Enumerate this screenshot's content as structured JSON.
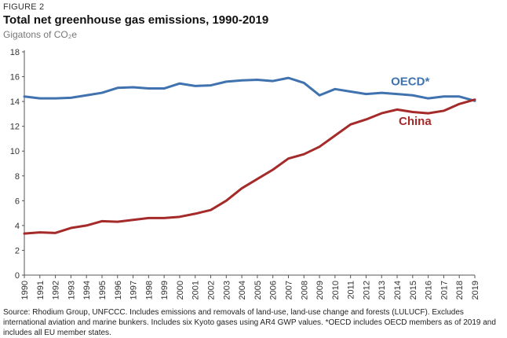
{
  "figure_label": "FIGURE 2",
  "source_note": "Source: Rhodium Group, UNFCCC. Includes emissions and removals of land-use, land-use change and forests (LULUCF). Excludes international aviation and marine bunkers. Includes six Kyoto gases using AR4 GWP values. *OECD includes OECD members as of 2019 and includes all EU member states.",
  "colors": {
    "oecd": "#3f72ae",
    "china": "#a52a2a",
    "axis": "#555555"
  },
  "chart_data": {
    "type": "line",
    "title": "Total net greenhouse gas emissions, 1990-2019",
    "subtitle": "Gigatons of CO₂e",
    "x": [
      1990,
      1991,
      1992,
      1993,
      1994,
      1995,
      1996,
      1997,
      1998,
      1999,
      2000,
      2001,
      2002,
      2003,
      2004,
      2005,
      2006,
      2007,
      2008,
      2009,
      2010,
      2011,
      2012,
      2013,
      2014,
      2015,
      2016,
      2017,
      2018,
      2019
    ],
    "ylim": [
      0,
      18
    ],
    "yticks": [
      0,
      2,
      4,
      6,
      8,
      10,
      12,
      14,
      16,
      18
    ],
    "grid": false,
    "series": [
      {
        "name": "OECD*",
        "color": "#3f72ae",
        "values": [
          14.4,
          14.25,
          14.25,
          14.3,
          14.5,
          14.7,
          15.1,
          15.15,
          15.05,
          15.05,
          15.45,
          15.25,
          15.3,
          15.6,
          15.7,
          15.75,
          15.65,
          15.9,
          15.5,
          14.5,
          15.0,
          14.8,
          14.6,
          14.7,
          14.6,
          14.5,
          14.25,
          14.4,
          14.4,
          14.05
        ]
      },
      {
        "name": "China",
        "color": "#a52a2a",
        "values": [
          3.35,
          3.45,
          3.4,
          3.8,
          4.0,
          4.35,
          4.3,
          4.45,
          4.6,
          4.6,
          4.7,
          4.95,
          5.25,
          6.0,
          7.0,
          7.75,
          8.5,
          9.4,
          9.75,
          10.35,
          11.25,
          12.15,
          12.55,
          13.05,
          13.35,
          13.15,
          13.05,
          13.25,
          13.8,
          14.15
        ]
      }
    ]
  }
}
